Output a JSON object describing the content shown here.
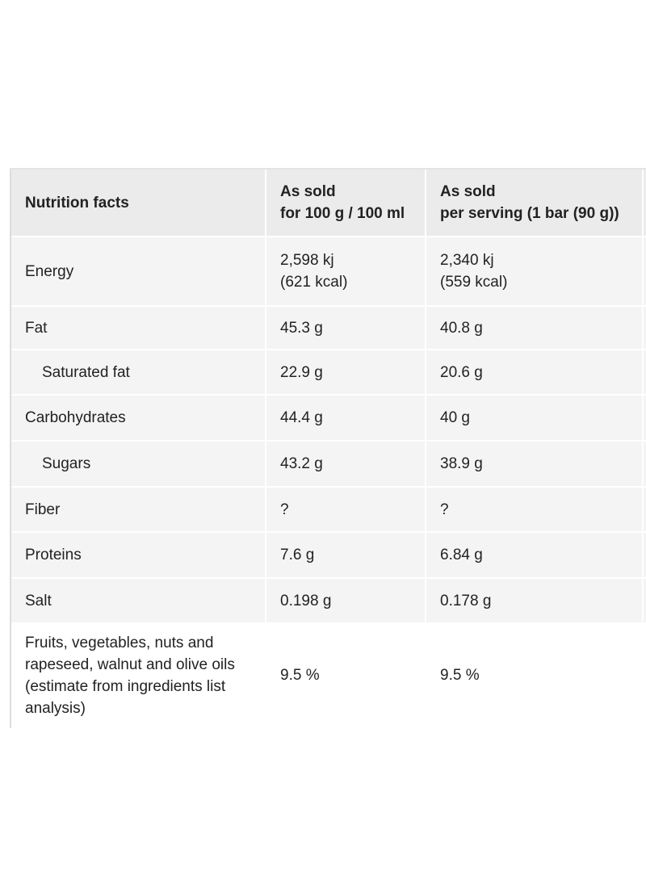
{
  "table": {
    "header": [
      "Nutrition facts",
      "As sold\nfor 100 g / 100 ml",
      "As sold\nper serving (1 bar (90 g))"
    ],
    "rows": [
      {
        "cells": [
          "Energy",
          "2,598 kj\n(621 kcal)",
          "2,340 kj\n(559 kcal)"
        ]
      },
      {
        "cells": [
          "Fat",
          "45.3 g",
          "40.8 g"
        ]
      },
      {
        "cells": [
          "Saturated fat",
          "22.9 g",
          "20.6 g"
        ],
        "indented": true
      },
      {
        "cells": [
          "Carbohydrates",
          "44.4 g",
          "40 g"
        ]
      },
      {
        "cells": [
          "Sugars",
          "43.2 g",
          "38.9 g"
        ],
        "indented": true
      },
      {
        "cells": [
          "Fiber",
          "?",
          "?"
        ]
      },
      {
        "cells": [
          "Proteins",
          "7.6 g",
          "6.84 g"
        ]
      },
      {
        "cells": [
          "Salt",
          "0.198 g",
          "0.178 g"
        ]
      },
      {
        "cells": [
          "Fruits, vegetables, nuts and rapeseed, walnut and olive oils (estimate from ingredients list analysis)",
          "9.5 %",
          "9.5 %"
        ]
      }
    ]
  }
}
